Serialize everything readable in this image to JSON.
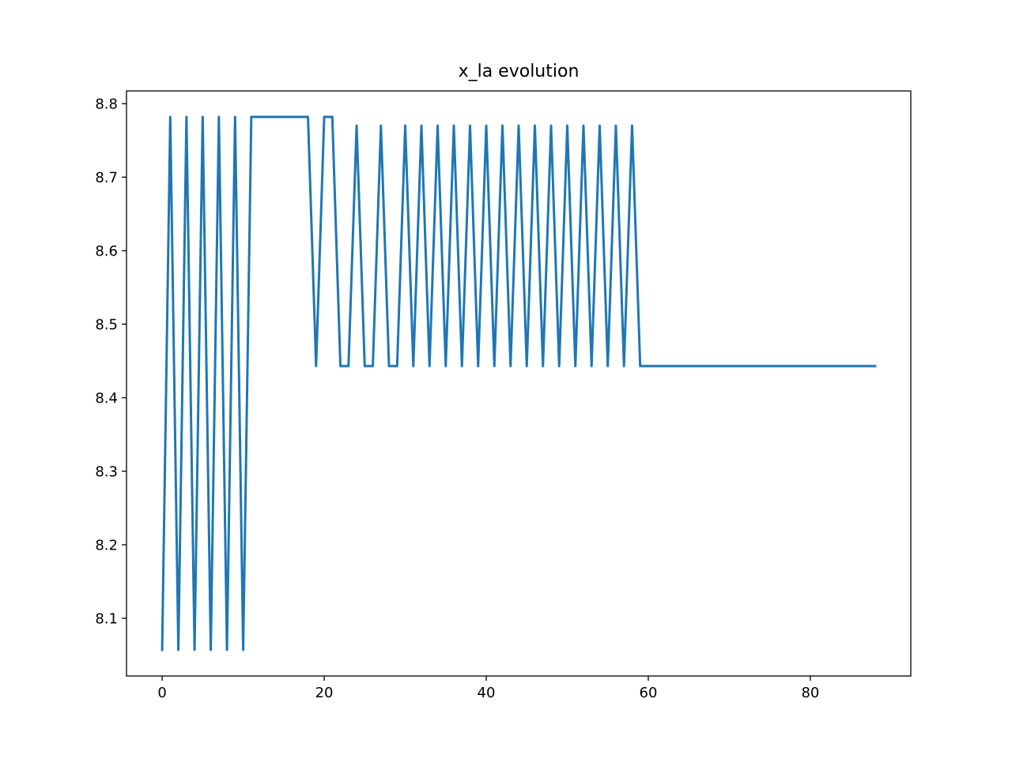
{
  "chart_data": {
    "type": "line",
    "title": "x_la evolution",
    "xlabel": "",
    "ylabel": "",
    "xlim": [
      -4.4,
      92.4
    ],
    "ylim": [
      8.0215,
      8.8173
    ],
    "xticks": [
      0,
      20,
      40,
      60,
      80
    ],
    "yticks": [
      8.1,
      8.2,
      8.3,
      8.4,
      8.5,
      8.6,
      8.7,
      8.8
    ],
    "xtick_labels": [
      "0",
      "20",
      "40",
      "60",
      "80"
    ],
    "ytick_labels": [
      "8.1",
      "8.2",
      "8.3",
      "8.4",
      "8.5",
      "8.6",
      "8.7",
      "8.8"
    ],
    "grid": false,
    "legend": "none",
    "series": [
      {
        "color": "#1f77b4",
        "x": [
          0,
          1,
          2,
          3,
          4,
          5,
          6,
          7,
          8,
          9,
          10,
          11,
          12,
          13,
          14,
          15,
          16,
          17,
          18,
          19,
          20,
          21,
          22,
          23,
          24,
          25,
          26,
          27,
          28,
          29,
          30,
          31,
          32,
          33,
          34,
          35,
          36,
          37,
          38,
          39,
          40,
          41,
          42,
          43,
          44,
          45,
          46,
          47,
          48,
          49,
          50,
          51,
          52,
          53,
          54,
          55,
          56,
          57,
          58,
          59,
          60,
          61,
          62,
          63,
          64,
          65,
          66,
          67,
          68,
          69,
          70,
          71,
          72,
          73,
          74,
          75,
          76,
          77,
          78,
          79,
          80,
          81,
          82,
          83,
          84,
          85,
          86,
          87,
          88
        ],
        "values": [
          8.057,
          8.782,
          8.057,
          8.782,
          8.057,
          8.782,
          8.057,
          8.782,
          8.057,
          8.782,
          8.057,
          8.782,
          8.782,
          8.782,
          8.782,
          8.782,
          8.782,
          8.782,
          8.782,
          8.443,
          8.782,
          8.782,
          8.443,
          8.443,
          8.77,
          8.443,
          8.443,
          8.77,
          8.443,
          8.443,
          8.77,
          8.443,
          8.77,
          8.443,
          8.77,
          8.443,
          8.77,
          8.443,
          8.77,
          8.443,
          8.77,
          8.443,
          8.77,
          8.443,
          8.77,
          8.443,
          8.77,
          8.443,
          8.77,
          8.443,
          8.77,
          8.443,
          8.77,
          8.443,
          8.77,
          8.443,
          8.77,
          8.443,
          8.77,
          8.443,
          8.443,
          8.443,
          8.443,
          8.443,
          8.443,
          8.443,
          8.443,
          8.443,
          8.443,
          8.443,
          8.443,
          8.443,
          8.443,
          8.443,
          8.443,
          8.443,
          8.443,
          8.443,
          8.443,
          8.443,
          8.443,
          8.443,
          8.443,
          8.443,
          8.443,
          8.443,
          8.443,
          8.443,
          8.443
        ]
      }
    ]
  }
}
